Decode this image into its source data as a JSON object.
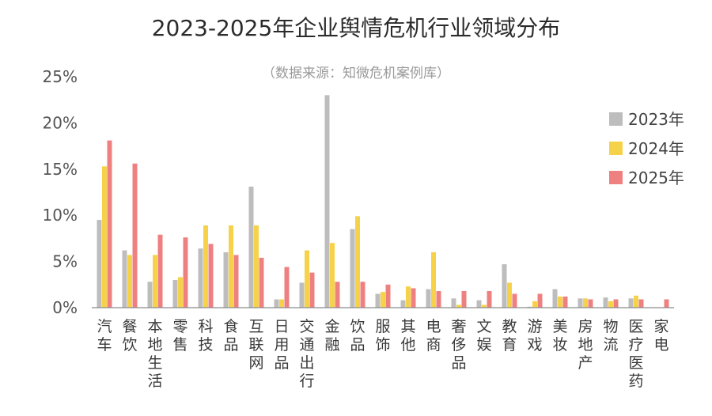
{
  "chart_data": {
    "type": "bar",
    "title": "2023-2025年企业舆情危机行业领域分布",
    "subtitle": "（数据来源：知微危机案例库）",
    "xlabel": "",
    "ylabel": "",
    "ylim": [
      0,
      25
    ],
    "yticks": [
      "0%",
      "5%",
      "10%",
      "15%",
      "20%",
      "25%"
    ],
    "legend_position": "right",
    "grid": false,
    "categories": [
      "汽车",
      "餐饮",
      "本地生活",
      "零售",
      "科技",
      "食品",
      "互联网",
      "日用品",
      "交通出行",
      "金融",
      "饮品",
      "服饰",
      "其他",
      "电商",
      "奢侈品",
      "文娱",
      "教育",
      "游戏",
      "美妆",
      "房地产",
      "物流",
      "医疗医药",
      "家电"
    ],
    "series": [
      {
        "name": "2023年",
        "color": "#bdbdbd",
        "values": [
          9.5,
          6.2,
          2.8,
          3.0,
          6.4,
          6.0,
          13.1,
          0.9,
          2.7,
          23.0,
          8.5,
          1.5,
          0.8,
          2.0,
          1.0,
          0.8,
          4.7,
          0.1,
          2.0,
          1.0,
          1.1,
          1.0,
          0.0
        ]
      },
      {
        "name": "2024年",
        "color": "#f6d24a",
        "values": [
          15.3,
          5.7,
          5.7,
          3.3,
          8.9,
          8.9,
          8.9,
          0.9,
          6.2,
          7.0,
          9.9,
          1.7,
          2.3,
          6.0,
          0.3,
          0.3,
          2.7,
          0.7,
          1.2,
          1.0,
          0.7,
          1.3,
          0.0
        ]
      },
      {
        "name": "2025年",
        "color": "#ef8080",
        "values": [
          18.1,
          15.6,
          7.9,
          7.6,
          6.9,
          5.7,
          5.4,
          4.4,
          3.8,
          2.8,
          2.8,
          2.5,
          2.1,
          1.8,
          1.8,
          1.8,
          1.5,
          1.5,
          1.2,
          0.9,
          0.9,
          0.9,
          0.9
        ]
      }
    ]
  }
}
